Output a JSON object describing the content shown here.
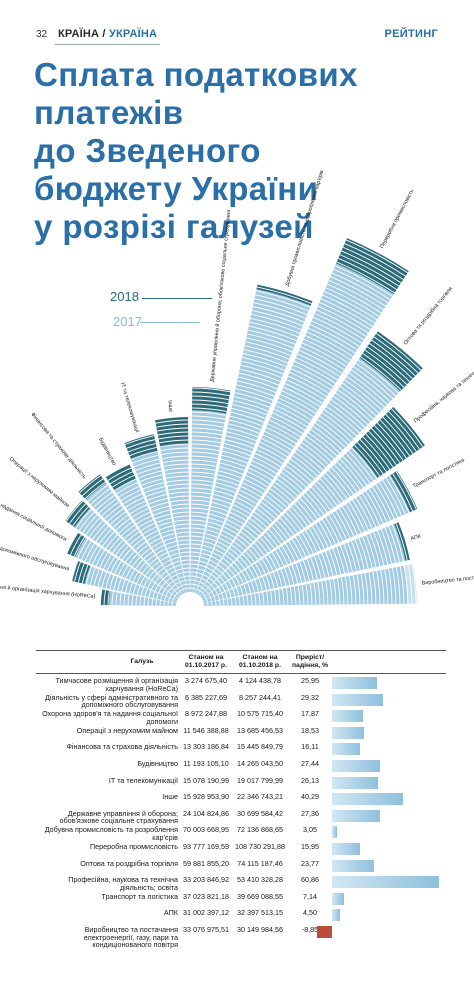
{
  "header": {
    "page_number": "32",
    "section": "КРАЇНА",
    "section_sep": " / ",
    "subsection": "УКРАЇНА",
    "rubric": "РЕЙТИНГ"
  },
  "title_lines": [
    "Сплата податкових",
    "платежів",
    "до Зведеного",
    "бюджету України",
    "у розрізі галузей"
  ],
  "colors": {
    "title": "#2a6fa8",
    "year2018": "#2b6b7a",
    "year2017": "#8cbbd6",
    "bar_positive": "#a9cfe6",
    "bar_negative": "#b94d3a"
  },
  "chart_data": {
    "type": "table",
    "legend": [
      "2018",
      "2017"
    ],
    "columns": [
      "Галузь",
      "Станом на 01.10.2017 р.",
      "Станом на 01.10.2018 р.",
      "Приріст/ падіння, %"
    ],
    "rows": [
      {
        "sector": "Тимчасове розміщення й організація харчування (HoReCa)",
        "v2017": "3 274 675,40",
        "v2018": "4 124 438,78",
        "change": "25,95",
        "pct": 25.95
      },
      {
        "sector": "Діяльність у сфері адміністративного та допоміжного обслуговування",
        "v2017": "6 385 227,69",
        "v2018": "8 257 244,41",
        "change": "29,32",
        "pct": 29.32
      },
      {
        "sector": "Охорона здоров'я та надання соціальної допомоги",
        "v2017": "8 972 247,88",
        "v2018": "10 575 715,40",
        "change": "17,87",
        "pct": 17.87
      },
      {
        "sector": "Операції з нерухомим майном",
        "v2017": "11 546 388,88",
        "v2018": "13 685 456,53",
        "change": "18,53",
        "pct": 18.53
      },
      {
        "sector": "Фінансова та страхова діяльність",
        "v2017": "13 303 186,84",
        "v2018": "15 445 849,79",
        "change": "16,11",
        "pct": 16.11
      },
      {
        "sector": "Будівництво",
        "v2017": "11 193 105,10",
        "v2018": "14 265 043,50",
        "change": "27,44",
        "pct": 27.44
      },
      {
        "sector": "ІТ та телекомунікації",
        "v2017": "15 078 190,99",
        "v2018": "19 017 799,99",
        "change": "26,13",
        "pct": 26.13
      },
      {
        "sector": "Інше",
        "v2017": "15 928 953,90",
        "v2018": "22 346 743,21",
        "change": "40,29",
        "pct": 40.29
      },
      {
        "sector": "Державне управління й оборона; обов'язкове соціальне страхування",
        "v2017": "24 104 824,86",
        "v2018": "30 699 584,42",
        "change": "27,36",
        "pct": 27.36
      },
      {
        "sector": "Добувна промисловість та розроблення кар'єрів",
        "v2017": "70 003 668,95",
        "v2018": "72 136 868,65",
        "change": "3,05",
        "pct": 3.05
      },
      {
        "sector": "Переробна промисловість",
        "v2017": "93 777 169,59",
        "v2018": "108 730 291,88",
        "change": "15,95",
        "pct": 15.95
      },
      {
        "sector": "Оптова та роздрібна торгівля",
        "v2017": "59 881 855,20",
        "v2018": "74 115 187,46",
        "change": "23,77",
        "pct": 23.77
      },
      {
        "sector": "Професійна, наукова та технічна діяльність; освіта",
        "v2017": "33 203 846,92",
        "v2018": "53 410 328,28",
        "change": "60,86",
        "pct": 60.86
      },
      {
        "sector": "Транспорт та логістика",
        "v2017": "37 023 821,18",
        "v2018": "39 669 088,55",
        "change": "7,14",
        "pct": 7.14
      },
      {
        "sector": "АПК",
        "v2017": "31 002 397,12",
        "v2018": "32 397 513,15",
        "change": "4,50",
        "pct": 4.5
      },
      {
        "sector": "Виробництво та постачання електроенергії, газу, пари та кондиціонованого повітря",
        "v2017": "33 076 975,51",
        "v2018": "30 149 984,56",
        "change": "-8,85",
        "pct": -8.85
      }
    ]
  },
  "radial_labels": [
    "Тимчасове розміщення й організація харчування (HoReCa)",
    "Діяльність у сфері адміністративного та допоміжного обслуговування",
    "Охорона здоров'я та надання соціальної допомоги",
    "Операції з нерухомим майном",
    "Фінансова та страхова діяльність",
    "Будівництво",
    "ІТ та телекомунікації",
    "Інше",
    "Державне управління й оборона; обов'язкове соціальне страхування",
    "Добувна промисловість та розроблення кар'єрів",
    "Переробна промисловість",
    "Оптова та роздрібна торгівля",
    "Професійна, наукова та технічна діяльність; освіта",
    "Транспорт та логістика",
    "АПК",
    "Виробництво та постачання електроенергії, газу, пари та кондиціонованого повітря"
  ]
}
